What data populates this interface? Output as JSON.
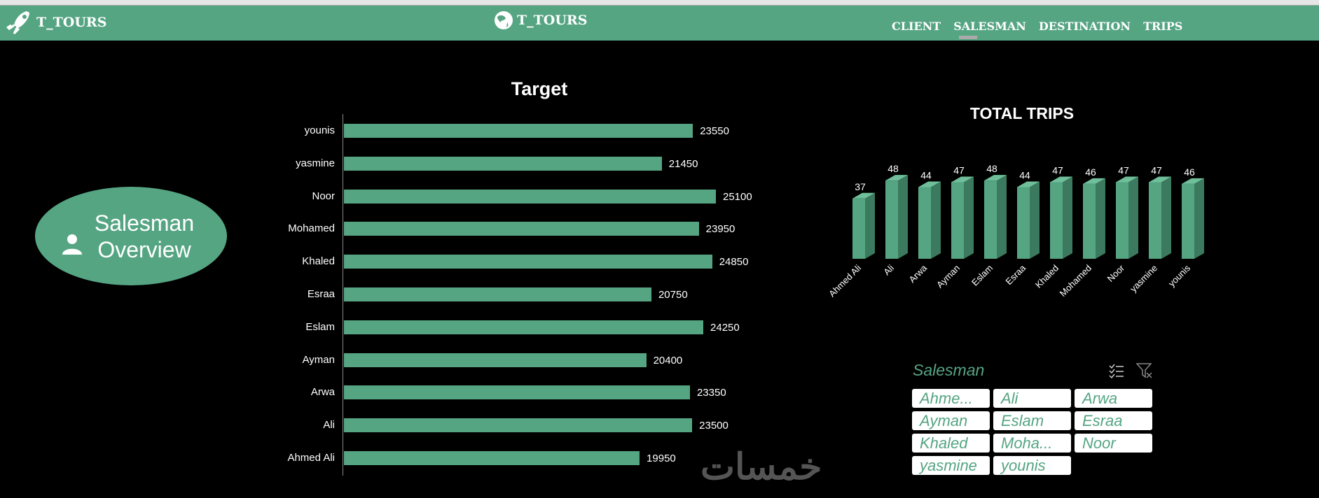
{
  "header": {
    "brand_left": "T_TOURS",
    "brand_center": "T_TOURS",
    "nav": [
      "CLIENT",
      "SALESMAN",
      "DESTINATION",
      "TRIPS"
    ],
    "active_nav": "SALESMAN",
    "color": "#55a583"
  },
  "overview": {
    "label": "Salesman Overview"
  },
  "chart_data": [
    {
      "type": "bar",
      "orientation": "horizontal",
      "title": "Target",
      "categories": [
        "younis",
        "yasmine",
        "Noor",
        "Mohamed",
        "Khaled",
        "Esraa",
        "Eslam",
        "Ayman",
        "Arwa",
        "Ali",
        "Ahmed Ali"
      ],
      "values": [
        23550,
        21450,
        25100,
        23950,
        24850,
        20750,
        24250,
        20400,
        23350,
        23500,
        19950
      ],
      "color": "#55a583"
    },
    {
      "type": "bar",
      "style": "3d-column",
      "title": "TOTAL TRIPS",
      "categories": [
        "Ahmed Ali",
        "Ali",
        "Arwa",
        "Ayman",
        "Eslam",
        "Esraa",
        "Khaled",
        "Mohamed",
        "Noor",
        "yasmine",
        "younis"
      ],
      "values": [
        37,
        48,
        44,
        47,
        48,
        44,
        47,
        46,
        47,
        47,
        46
      ],
      "color": "#55a583"
    }
  ],
  "slicer": {
    "title": "Salesman",
    "items": [
      "Ahme...",
      "Ali",
      "Arwa",
      "Ayman",
      "Eslam",
      "Esraa",
      "Khaled",
      "Moha...",
      "Noor",
      "yasmine",
      "younis"
    ]
  },
  "watermark": "خمسات"
}
